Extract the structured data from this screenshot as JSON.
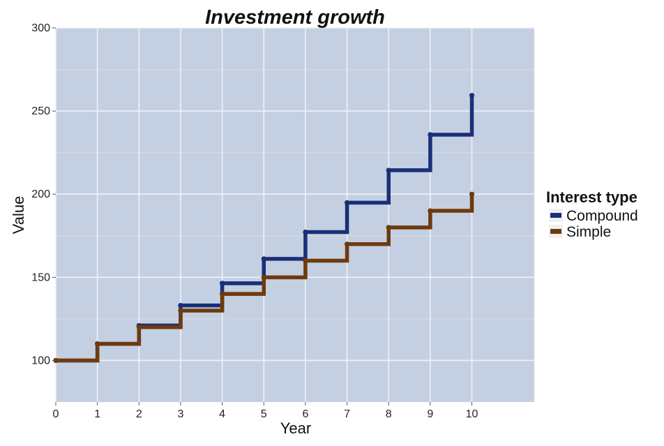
{
  "chart_data": {
    "type": "line",
    "subtype": "step",
    "title": "Investment growth",
    "xlabel": "Year",
    "ylabel": "Value",
    "x": [
      0,
      1,
      2,
      3,
      4,
      5,
      6,
      7,
      8,
      9,
      10
    ],
    "xticks": [
      "0",
      "1",
      "2",
      "3",
      "4",
      "5",
      "6",
      "7",
      "8",
      "9",
      "10"
    ],
    "yticks": [
      "100",
      "150",
      "200",
      "250",
      "300"
    ],
    "xlim": [
      0,
      11.5
    ],
    "ylim": [
      75,
      300
    ],
    "grid": true,
    "legend": {
      "title": "Interest type",
      "position": "right"
    },
    "series": [
      {
        "name": "Compound",
        "color": "#1a2f78",
        "values": [
          100,
          110,
          121,
          133.1,
          146.4,
          161.1,
          177.2,
          194.9,
          214.4,
          235.8,
          259.4
        ]
      },
      {
        "name": "Simple",
        "color": "#6e3a0e",
        "values": [
          100,
          110,
          120,
          130,
          140,
          150,
          160,
          170,
          180,
          190,
          200
        ]
      }
    ]
  }
}
